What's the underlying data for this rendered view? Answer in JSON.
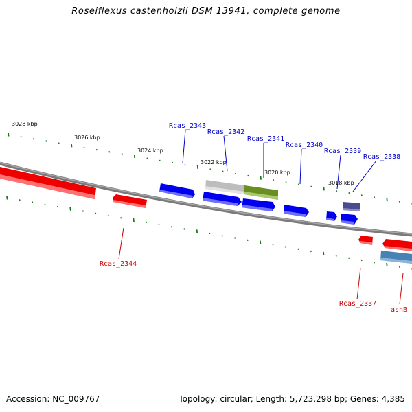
{
  "title": "Roseiflexus castenholzii DSM 13941, complete genome",
  "footer": {
    "accession": "Accession: NC_009767",
    "summary": "Topology: circular; Length: 5,723,298 bp; Genes: 4,385"
  },
  "ruler_labels": [
    "3028 kbp",
    "3026 kbp",
    "3024 kbp",
    "3022 kbp",
    "3020 kbp",
    "3018 kbp"
  ],
  "gene_labels": {
    "forward": [
      "Rcas_2343",
      "Rcas_2342",
      "Rcas_2341",
      "Rcas_2340",
      "Rcas_2339",
      "Rcas_2338"
    ],
    "reverse": [
      "Rcas_2344",
      "Rcas_2337",
      "asnB"
    ]
  },
  "colors": {
    "backbone": "#7f7f7f",
    "tick": "#1a7a1a",
    "forward_gene": "#0000ee",
    "reverse_gene": "#ee0000",
    "forward_label": "#0000cc",
    "reverse_label": "#cc0000",
    "gray_feature": "#bcbcbc",
    "olive_feature": "#6b8e23",
    "purple_feature": "#4b4b8f",
    "steelblue_feature": "#4682b4"
  }
}
